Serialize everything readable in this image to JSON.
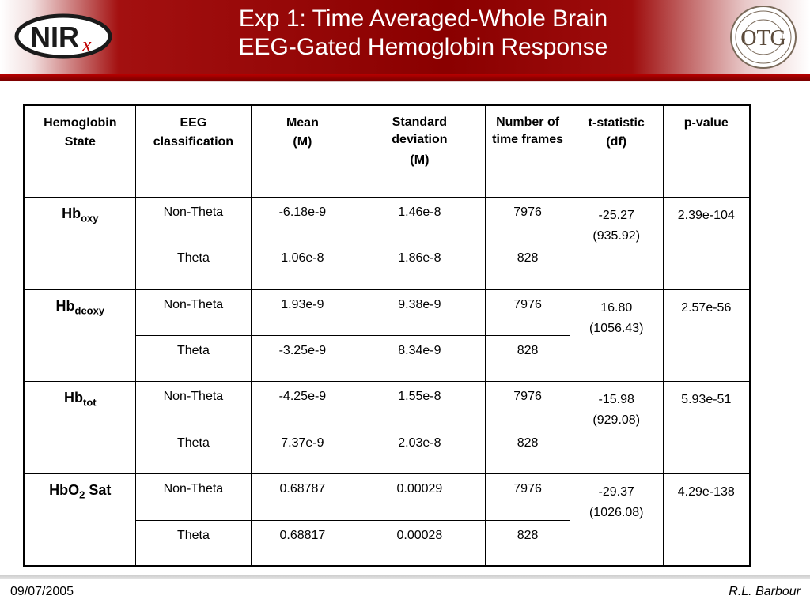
{
  "slide": {
    "title_line1": "Exp 1: Time Averaged-Whole Brain",
    "title_line2": "EEG-Gated Hemoglobin Response",
    "logo_left_text": "NIR",
    "logo_left_sub": "x",
    "logo_right_text": "OTG",
    "colors": {
      "header_red": "#8a0000",
      "accent_red": "#b80000"
    }
  },
  "table": {
    "headers": {
      "state": [
        "Hemoglobin",
        "State"
      ],
      "eeg": [
        "EEG",
        "classification"
      ],
      "mean": [
        "Mean",
        "(M)"
      ],
      "sd": [
        "Standard deviation",
        "(M)"
      ],
      "frames": [
        "Number of time frames"
      ],
      "t": [
        "t-statistic",
        "(df)"
      ],
      "p": [
        "p-value"
      ]
    },
    "groups": [
      {
        "state_base": "Hb",
        "state_sub": "oxy",
        "state_suffix": "",
        "t": "-25.27",
        "df": "(935.92)",
        "p": "2.39e-104",
        "rows": [
          {
            "eeg": "Non-Theta",
            "mean": "-6.18e-9",
            "sd": "1.46e-8",
            "frames": "7976"
          },
          {
            "eeg": "Theta",
            "mean": "1.06e-8",
            "sd": "1.86e-8",
            "frames": "828"
          }
        ]
      },
      {
        "state_base": "Hb",
        "state_sub": "deoxy",
        "state_suffix": "",
        "t": "16.80",
        "df": "(1056.43)",
        "p": "2.57e-56",
        "rows": [
          {
            "eeg": "Non-Theta",
            "mean": "1.93e-9",
            "sd": "9.38e-9",
            "frames": "7976"
          },
          {
            "eeg": "Theta",
            "mean": "-3.25e-9",
            "sd": "8.34e-9",
            "frames": "828"
          }
        ]
      },
      {
        "state_base": "Hb",
        "state_sub": "tot",
        "state_suffix": "",
        "t": "-15.98",
        "df": "(929.08)",
        "p": "5.93e-51",
        "rows": [
          {
            "eeg": "Non-Theta",
            "mean": "-4.25e-9",
            "sd": "1.55e-8",
            "frames": "7976"
          },
          {
            "eeg": "Theta",
            "mean": "7.37e-9",
            "sd": "2.03e-8",
            "frames": "828"
          }
        ]
      },
      {
        "state_base": "HbO",
        "state_sub": "2",
        "state_suffix": " Sat",
        "t": "-29.37",
        "df": "(1026.08)",
        "p": "4.29e-138",
        "rows": [
          {
            "eeg": "Non-Theta",
            "mean": "0.68787",
            "sd": "0.00029",
            "frames": "7976"
          },
          {
            "eeg": "Theta",
            "mean": "0.68817",
            "sd": "0.00028",
            "frames": "828"
          }
        ]
      }
    ]
  },
  "footer": {
    "date": "09/07/2005",
    "author": "R.L. Barbour"
  }
}
